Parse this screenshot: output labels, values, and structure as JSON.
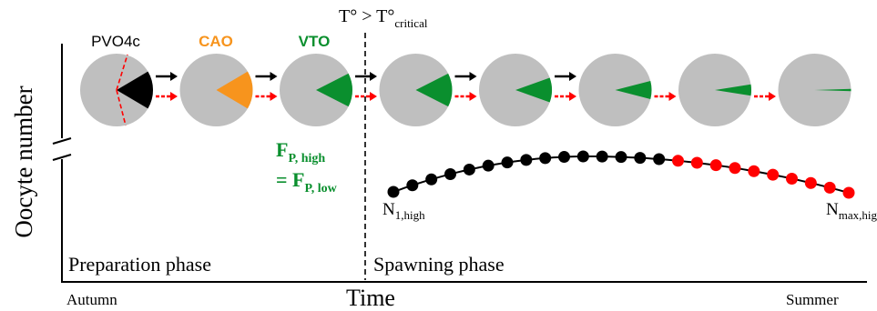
{
  "axis": {
    "y_label": "Oocyte number",
    "x_label": "Time",
    "x_start": "Autumn",
    "x_end": "Summer"
  },
  "threshold": {
    "text": "T° > T°",
    "subscript": "critical"
  },
  "phases": {
    "preparation": "Preparation phase",
    "spawning": "Spawning phase"
  },
  "stages": [
    {
      "label": "PVO4c",
      "color": "#000000"
    },
    {
      "label": "CAO",
      "color": "#f7941d"
    },
    {
      "label": "VTO",
      "color": "#0a8f2e"
    }
  ],
  "equation": {
    "line1_main": "F",
    "line1_sub": "P, high",
    "line2_main": "= F",
    "line2_sub": "P, low",
    "color": "#0a8f2e"
  },
  "curve_labels": {
    "start_main": "N",
    "start_sub": "1,high",
    "end_main": "N",
    "end_sub": "max,high"
  },
  "pies": [
    {
      "fraction": 0.17,
      "fill": "#000000",
      "dashed_lines": true
    },
    {
      "fraction": 0.17,
      "fill": "#f7941d"
    },
    {
      "fraction": 0.15,
      "fill": "#0a8f2e"
    },
    {
      "fraction": 0.15,
      "fill": "#0a8f2e"
    },
    {
      "fraction": 0.11,
      "fill": "#0a8f2e"
    },
    {
      "fraction": 0.08,
      "fill": "#0a8f2e"
    },
    {
      "fraction": 0.05,
      "fill": "#0a8f2e"
    },
    {
      "fraction": 0.01,
      "fill": "#0a8f2e"
    }
  ],
  "arrows": [
    {
      "black": true,
      "red": true
    },
    {
      "black": true,
      "red": true
    },
    {
      "black": true,
      "red": true
    },
    {
      "black": true,
      "red": true
    },
    {
      "black": true,
      "red": true
    },
    {
      "black": false,
      "red": true
    },
    {
      "black": false,
      "red": true
    }
  ],
  "curve": {
    "black_points": 15,
    "red_points": 10,
    "colors": {
      "black": "#000000",
      "red": "#ff0000"
    }
  },
  "colors": {
    "pie_base": "#bfbfbf",
    "red_arrow": "#ff0000",
    "black_arrow": "#000000"
  }
}
